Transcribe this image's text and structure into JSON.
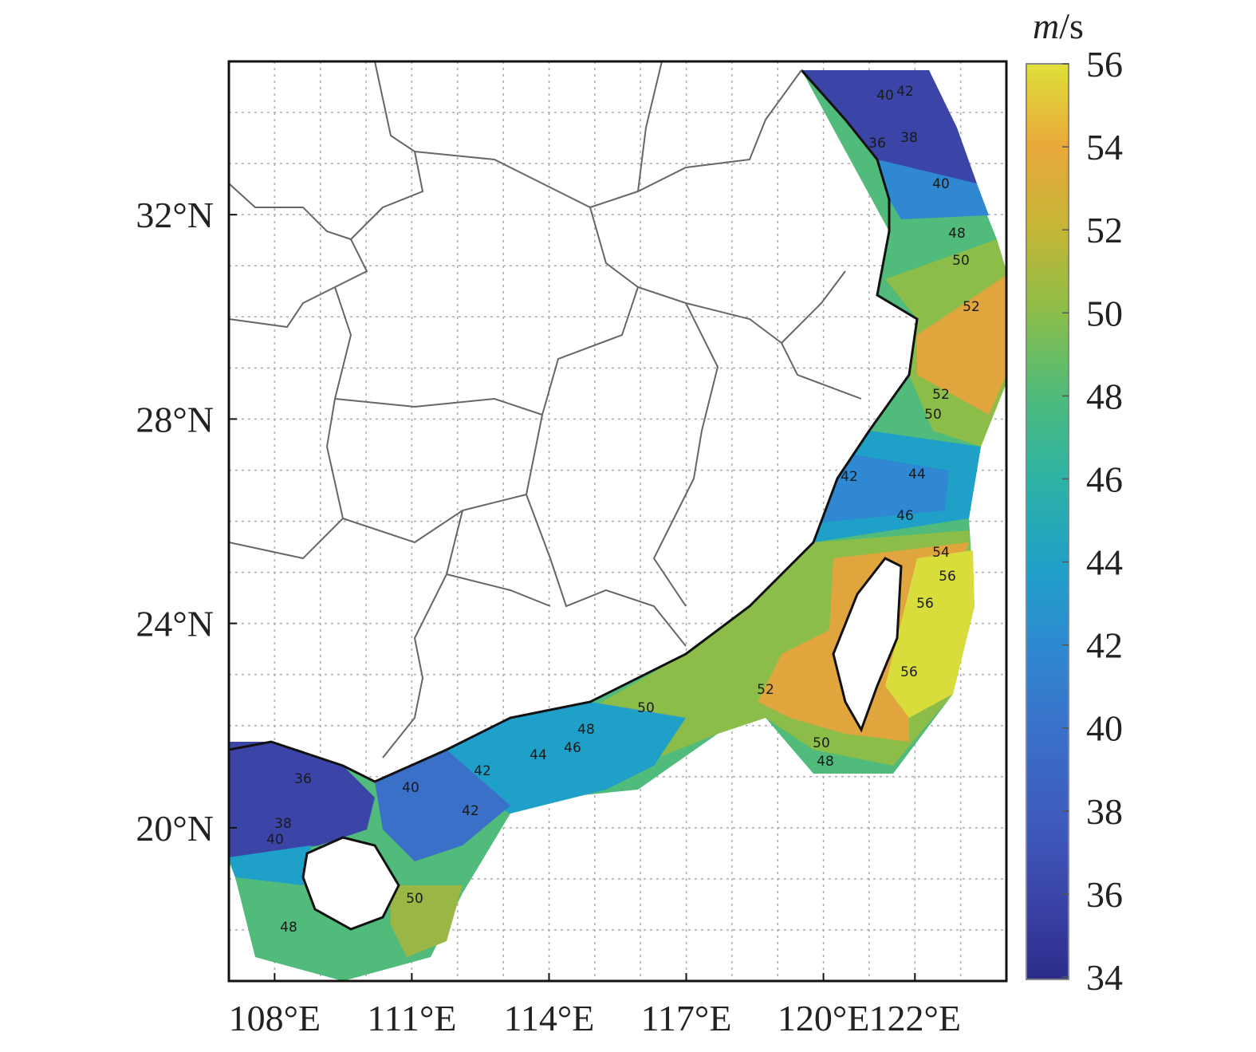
{
  "chart_data": {
    "type": "map",
    "xlim": [
      107,
      124
    ],
    "ylim": [
      17,
      35
    ],
    "xticks": [
      {
        "value": 108,
        "label": "108°E"
      },
      {
        "value": 111,
        "label": "111°E"
      },
      {
        "value": 114,
        "label": "114°E"
      },
      {
        "value": 117,
        "label": "117°E"
      },
      {
        "value": 120,
        "label": "120°E"
      },
      {
        "value": 122,
        "label": "122°E"
      }
    ],
    "yticks": [
      {
        "value": 20,
        "label": "20°N"
      },
      {
        "value": 24,
        "label": "24°N"
      },
      {
        "value": 28,
        "label": "28°N"
      },
      {
        "value": 32,
        "label": "32°N"
      }
    ],
    "grid": true,
    "colorbar": {
      "unit_italic": "m",
      "unit_rest": "/s",
      "clim": [
        34,
        56
      ],
      "ticks": [
        34,
        36,
        38,
        40,
        42,
        44,
        46,
        48,
        50,
        52,
        54,
        56
      ]
    },
    "contour_labels": [
      42,
      40,
      36,
      38,
      40,
      48,
      50,
      52,
      52,
      50,
      42,
      44,
      46,
      54,
      56,
      56,
      56,
      52,
      50,
      48,
      50,
      48,
      46,
      44,
      42,
      40,
      36,
      38,
      42,
      40,
      50,
      48
    ]
  }
}
